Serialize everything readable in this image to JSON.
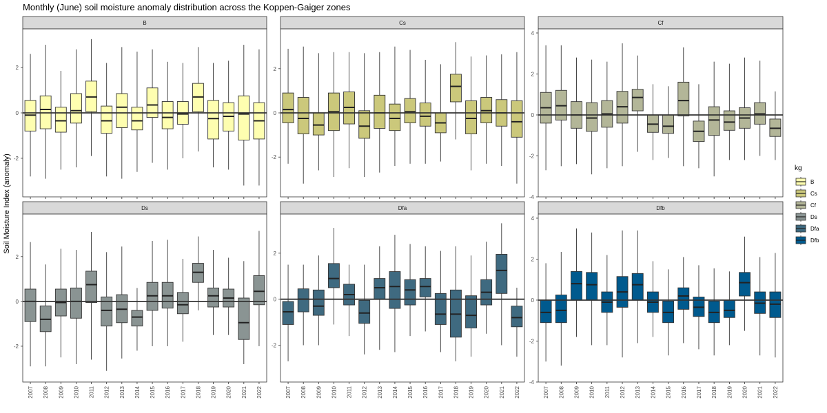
{
  "chart_data": {
    "type": "boxplot",
    "title": "Monthly (June) soil moisture anomaly distribution across the Koppen-Gaiger zones",
    "ylabel": "Soil Moisture Index (anomaly)",
    "xlabel": "",
    "years": [
      "2007",
      "2008",
      "2009",
      "2010",
      "2011",
      "2012",
      "2013",
      "2014",
      "2015",
      "2016",
      "2017",
      "2018",
      "2019",
      "2020",
      "2021",
      "2022"
    ],
    "reference_line": 0,
    "legend": {
      "title": "kg",
      "placement": "right",
      "entries": [
        "B",
        "Cs",
        "Cf",
        "Ds",
        "Dfa",
        "Dfb"
      ]
    },
    "colors": {
      "B": "#FEFEB0",
      "Cs": "#CBC87B",
      "Cf": "#B3B698",
      "Ds": "#8A9493",
      "Dfa": "#3F6A80",
      "Dfb": "#005A8E"
    },
    "panels": [
      {
        "name": "B",
        "ylim": [
          -3.7,
          3.7
        ],
        "yticks": [
          -2,
          0,
          2
        ],
        "boxes": [
          [
            -2.8,
            -0.8,
            -0.1,
            0.55,
            2.6
          ],
          [
            -2.9,
            -0.7,
            0.15,
            0.75,
            3.0
          ],
          [
            -2.5,
            -0.85,
            -0.35,
            0.25,
            1.85
          ],
          [
            -2.4,
            -0.45,
            0.1,
            0.85,
            2.8
          ],
          [
            -1.9,
            0.05,
            0.7,
            1.4,
            3.25
          ],
          [
            -2.8,
            -0.9,
            -0.35,
            0.3,
            2.2
          ],
          [
            -2.9,
            -0.65,
            0.25,
            0.85,
            2.9
          ],
          [
            -2.6,
            -0.75,
            -0.35,
            0.25,
            2.7
          ],
          [
            -2.2,
            -0.2,
            0.35,
            1.1,
            2.8
          ],
          [
            -2.5,
            -0.7,
            -0.2,
            0.5,
            2.25
          ],
          [
            -2.0,
            -0.5,
            -0.05,
            0.5,
            2.2
          ],
          [
            -1.7,
            0.05,
            0.7,
            1.3,
            2.9
          ],
          [
            -2.4,
            -1.15,
            -0.25,
            0.55,
            2.2
          ],
          [
            -2.5,
            -0.8,
            -0.15,
            0.45,
            2.3
          ],
          [
            -3.2,
            -1.2,
            -0.05,
            0.75,
            3.0
          ],
          [
            -3.2,
            -1.15,
            -0.35,
            0.45,
            2.8
          ]
        ]
      },
      {
        "name": "Cs",
        "ylim": [
          -3.8,
          3.8
        ],
        "yticks": [
          -2,
          0,
          2
        ],
        "boxes": [
          [
            -2.3,
            -0.45,
            0.15,
            0.9,
            2.9
          ],
          [
            -3.2,
            -0.95,
            -0.25,
            0.7,
            3.0
          ],
          [
            -2.6,
            -1.0,
            -0.55,
            0.0,
            2.7
          ],
          [
            -2.9,
            -0.8,
            0.05,
            0.9,
            2.75
          ],
          [
            -2.5,
            -0.5,
            0.25,
            0.95,
            2.75
          ],
          [
            -2.9,
            -1.15,
            -0.6,
            0.1,
            2.7
          ],
          [
            -2.7,
            -0.7,
            0.0,
            0.8,
            2.75
          ],
          [
            -2.4,
            -0.8,
            -0.25,
            0.4,
            3.0
          ],
          [
            -2.3,
            -0.45,
            0.05,
            0.65,
            2.85
          ],
          [
            -2.3,
            -0.6,
            -0.15,
            0.45,
            2.4
          ],
          [
            -2.2,
            -0.9,
            -0.45,
            0.0,
            2.2
          ],
          [
            -1.2,
            0.5,
            1.2,
            1.75,
            3.2
          ],
          [
            -2.6,
            -0.95,
            -0.25,
            0.55,
            2.55
          ],
          [
            -2.3,
            -0.45,
            0.1,
            0.7,
            2.6
          ],
          [
            -2.4,
            -0.6,
            0.0,
            0.6,
            2.65
          ],
          [
            -3.2,
            -1.1,
            -0.4,
            0.55,
            2.75
          ]
        ]
      },
      {
        "name": "Cf",
        "ylim": [
          -4.0,
          4.2
        ],
        "yticks": [
          -4,
          -2,
          0,
          2,
          4
        ],
        "boxes": [
          [
            -2.7,
            -0.4,
            0.35,
            1.1,
            3.4
          ],
          [
            -2.5,
            -0.25,
            0.45,
            1.2,
            3.4
          ],
          [
            -2.4,
            -0.65,
            0.0,
            0.65,
            2.8
          ],
          [
            -2.9,
            -0.8,
            -0.15,
            0.6,
            2.7
          ],
          [
            -2.6,
            -0.6,
            0.05,
            0.7,
            2.6
          ],
          [
            -2.5,
            -0.4,
            0.4,
            1.15,
            3.5
          ],
          [
            -1.8,
            0.2,
            0.85,
            1.25,
            2.9
          ],
          [
            -2.2,
            -0.85,
            -0.45,
            0.0,
            1.5
          ],
          [
            -2.1,
            -0.9,
            -0.55,
            0.0,
            1.4
          ],
          [
            -2.5,
            -0.05,
            0.7,
            1.6,
            3.3
          ],
          [
            -2.6,
            -1.3,
            -0.8,
            -0.3,
            1.5
          ],
          [
            -3.0,
            -1.0,
            -0.25,
            0.4,
            2.6
          ],
          [
            -2.2,
            -0.75,
            -0.35,
            0.2,
            2.5
          ],
          [
            -2.2,
            -0.65,
            -0.15,
            0.35,
            2.8
          ],
          [
            -2.0,
            -0.45,
            0.05,
            0.6,
            2.65
          ],
          [
            -2.2,
            -1.05,
            -0.65,
            -0.2,
            1.15
          ]
        ]
      },
      {
        "name": "Ds",
        "ylim": [
          -3.6,
          3.9
        ],
        "yticks": [
          -2,
          0,
          2
        ],
        "boxes": [
          [
            -2.9,
            -0.9,
            0.0,
            0.55,
            2.65
          ],
          [
            -2.9,
            -1.35,
            -0.8,
            -0.2,
            1.65
          ],
          [
            -2.5,
            -0.65,
            -0.05,
            0.55,
            2.35
          ],
          [
            -2.8,
            -0.75,
            0.0,
            0.6,
            2.3
          ],
          [
            -2.6,
            -0.05,
            0.75,
            1.35,
            3.1
          ],
          [
            -3.1,
            -1.1,
            -0.4,
            0.2,
            2.2
          ],
          [
            -2.55,
            -0.95,
            -0.35,
            0.3,
            2.45
          ],
          [
            -2.2,
            -1.1,
            -0.7,
            -0.4,
            0.6
          ],
          [
            -2.0,
            -0.4,
            0.25,
            0.85,
            2.7
          ],
          [
            -2.0,
            -0.3,
            0.25,
            0.85,
            2.75
          ],
          [
            -1.8,
            -0.55,
            -0.15,
            0.4,
            1.9
          ],
          [
            -0.4,
            0.85,
            1.3,
            1.7,
            2.9
          ],
          [
            -1.5,
            -0.25,
            0.25,
            0.6,
            2.3
          ],
          [
            -1.5,
            -0.25,
            0.15,
            0.55,
            1.95
          ],
          [
            -2.8,
            -1.7,
            -0.95,
            0.15,
            1.8
          ],
          [
            -2.0,
            -0.15,
            0.45,
            1.15,
            3.15
          ]
        ]
      },
      {
        "name": "Dfa",
        "ylim": [
          -3.6,
          3.7
        ],
        "yticks": [
          -2,
          0,
          2
        ],
        "boxes": [
          [
            -2.7,
            -1.1,
            -0.55,
            -0.1,
            1.5
          ],
          [
            -2.0,
            -0.55,
            0.0,
            0.45,
            1.5
          ],
          [
            -2.0,
            -0.7,
            -0.3,
            0.4,
            1.9
          ],
          [
            -1.1,
            0.5,
            0.9,
            1.55,
            3.1
          ],
          [
            -1.6,
            -0.25,
            0.2,
            0.65,
            1.5
          ],
          [
            -2.4,
            -1.05,
            -0.6,
            -0.05,
            1.5
          ],
          [
            -2.2,
            0.0,
            0.5,
            0.9,
            2.3
          ],
          [
            -2.3,
            -0.4,
            0.55,
            1.2,
            2.8
          ],
          [
            -1.6,
            -0.25,
            0.4,
            0.85,
            2.4
          ],
          [
            -1.4,
            0.1,
            0.55,
            0.9,
            2.3
          ],
          [
            -2.3,
            -1.1,
            -0.65,
            0.25,
            2.1
          ],
          [
            -2.7,
            -1.65,
            -0.65,
            0.4,
            2.3
          ],
          [
            -2.5,
            -1.25,
            -0.7,
            0.15,
            1.9
          ],
          [
            -1.5,
            -0.25,
            0.3,
            0.85,
            2.5
          ],
          [
            -2.0,
            0.25,
            1.25,
            1.95,
            3.3
          ],
          [
            -2.5,
            -1.2,
            -0.8,
            -0.3,
            0.5
          ]
        ]
      },
      {
        "name": "Dfb",
        "ylim": [
          -4.0,
          4.2
        ],
        "yticks": [
          -4,
          -2,
          0,
          2,
          4
        ],
        "boxes": [
          [
            -3.0,
            -1.1,
            -0.6,
            0.0,
            1.8
          ],
          [
            -3.2,
            -1.1,
            -0.5,
            0.25,
            2.35
          ],
          [
            -1.8,
            0.0,
            0.8,
            1.4,
            3.5
          ],
          [
            -2.2,
            0.0,
            0.75,
            1.35,
            3.3
          ],
          [
            -2.2,
            -0.6,
            -0.1,
            0.4,
            2.2
          ],
          [
            -2.8,
            -0.35,
            0.4,
            1.15,
            3.4
          ],
          [
            -2.1,
            0.0,
            0.75,
            1.3,
            3.4
          ],
          [
            -1.8,
            -0.6,
            -0.1,
            0.4,
            1.9
          ],
          [
            -2.7,
            -1.1,
            -0.6,
            -0.05,
            1.5
          ],
          [
            -2.1,
            -0.45,
            0.2,
            0.6,
            2.1
          ],
          [
            -2.4,
            -0.8,
            -0.35,
            0.15,
            1.7
          ],
          [
            -2.7,
            -1.1,
            -0.6,
            -0.05,
            1.55
          ],
          [
            -2.2,
            -0.85,
            -0.5,
            0.0,
            1.4
          ],
          [
            -1.5,
            0.2,
            0.85,
            1.35,
            3.1
          ],
          [
            -2.7,
            -0.65,
            -0.15,
            0.4,
            2.1
          ],
          [
            -2.8,
            -0.85,
            -0.2,
            0.4,
            2.3
          ]
        ]
      }
    ]
  }
}
